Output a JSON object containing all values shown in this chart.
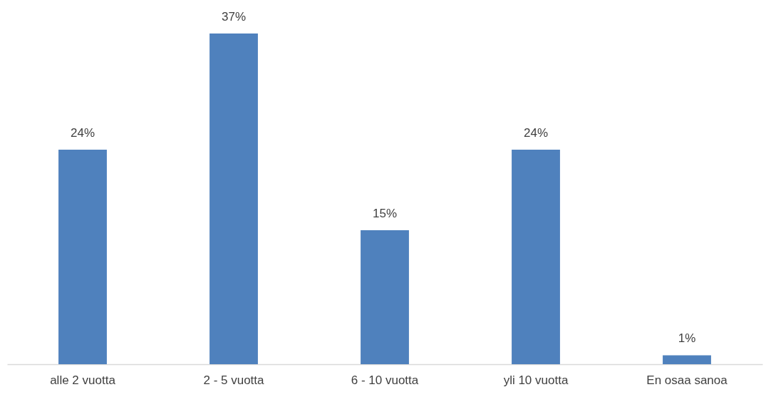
{
  "chart_data": {
    "type": "bar",
    "categories": [
      "alle 2 vuotta",
      "2 - 5 vuotta",
      "6 - 10 vuotta",
      "yli 10 vuotta",
      "En osaa sanoa"
    ],
    "values": [
      24,
      37,
      15,
      24,
      1
    ],
    "value_labels": [
      "24%",
      "37%",
      "15%",
      "24%",
      "1%"
    ],
    "color": "#4f81bd"
  }
}
